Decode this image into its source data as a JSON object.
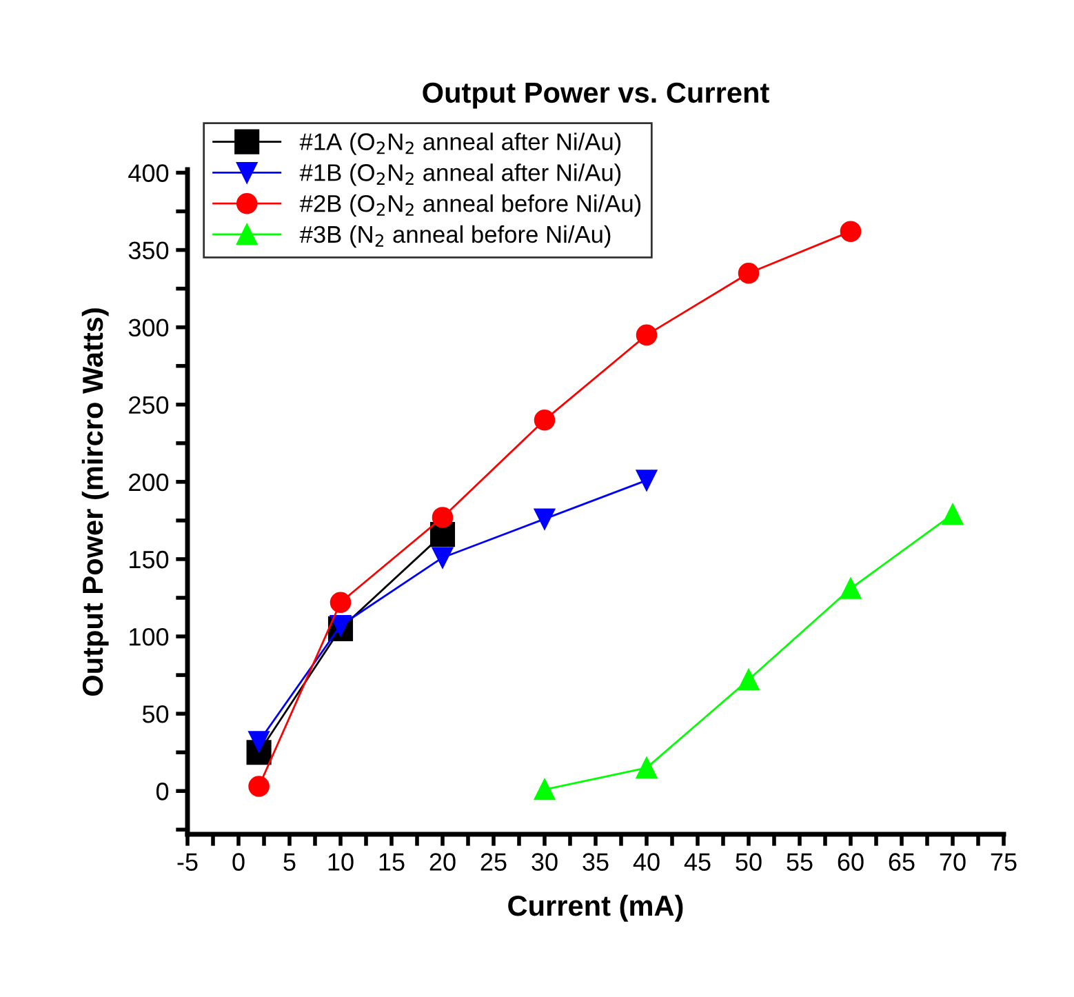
{
  "chart_data": {
    "type": "line",
    "title": "Output Power vs. Current",
    "xlabel": "Current (mA)",
    "ylabel": "Output Power (mircro Watts)",
    "xlim": [
      -5,
      75
    ],
    "ylim": [
      -28,
      402
    ],
    "xticks": [
      -5,
      {
        "value": -2.5,
        "label": null
      },
      0,
      {
        "value": 2.5,
        "label": null
      },
      5,
      {
        "value": 7.5,
        "label": null
      },
      10,
      {
        "value": 12.5,
        "label": null
      },
      15,
      {
        "value": 17.5,
        "label": null
      },
      20,
      {
        "value": 22.5,
        "label": null
      },
      25,
      {
        "value": 27.5,
        "label": null
      },
      30,
      {
        "value": 32.5,
        "label": null
      },
      35,
      {
        "value": 37.5,
        "label": null
      },
      40,
      {
        "value": 42.5,
        "label": null
      },
      45,
      {
        "value": 47.5,
        "label": null
      },
      50,
      {
        "value": 52.5,
        "label": null
      },
      55,
      {
        "value": 57.5,
        "label": null
      },
      60,
      {
        "value": 62.5,
        "label": null
      },
      65,
      {
        "value": 67.5,
        "label": null
      },
      70,
      {
        "value": 72.5,
        "label": null
      },
      75
    ],
    "yticks": [
      {
        "value": -25,
        "label": null
      },
      0,
      {
        "value": 25,
        "label": null
      },
      50,
      {
        "value": 75,
        "label": null
      },
      100,
      {
        "value": 125,
        "label": null
      },
      150,
      {
        "value": 175,
        "label": null
      },
      200,
      {
        "value": 225,
        "label": null
      },
      250,
      {
        "value": 275,
        "label": null
      },
      300,
      {
        "value": 325,
        "label": null
      },
      350,
      {
        "value": 375,
        "label": null
      },
      400
    ],
    "grid": false,
    "legend": "top left",
    "line_style": "solid",
    "series": [
      {
        "name": "#1A (O$_{2}$N$_{2}$ anneal after Ni/Au)",
        "color": "#000000",
        "marker": "square",
        "x": [
          2,
          10,
          20
        ],
        "values": [
          25,
          105,
          166
        ]
      },
      {
        "name": "#1B (O$_{2}$N$_{2}$ anneal after Ni/Au)",
        "color": "#0000ff",
        "marker": "triangle_down",
        "x": [
          2,
          10,
          20,
          30,
          40
        ],
        "values": [
          32,
          107,
          151,
          176,
          201
        ]
      },
      {
        "name": "#2B (O$_{2}$N$_{2}$ anneal before Ni/Au)",
        "color": "#ff0000",
        "marker": "circle",
        "x": [
          2,
          10,
          20,
          30,
          40,
          50,
          60
        ],
        "values": [
          3,
          122,
          177,
          240,
          295,
          335,
          362
        ]
      },
      {
        "name": "#3B (N$_{2}$ anneal before Ni/Au)",
        "color": "#00ff00",
        "marker": "triangle",
        "x": [
          30,
          40,
          50,
          60,
          70
        ],
        "values": [
          1,
          15,
          72,
          131,
          179
        ]
      }
    ]
  }
}
